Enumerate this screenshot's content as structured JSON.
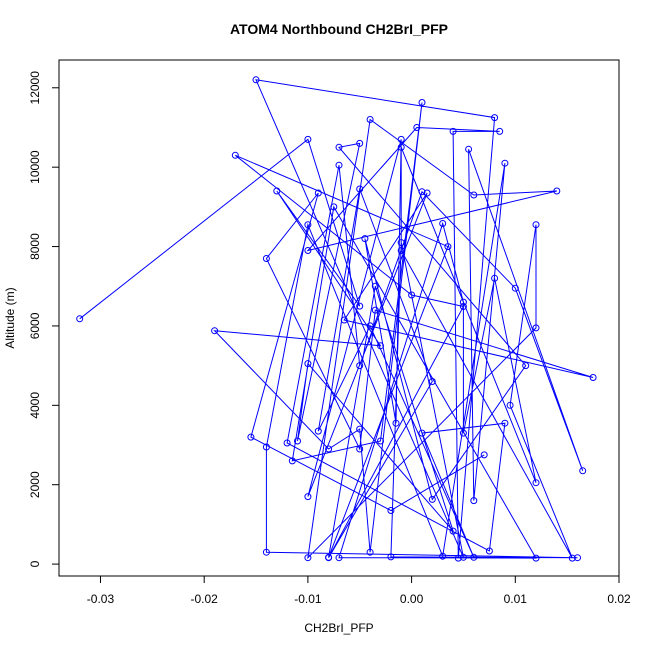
{
  "chart_data": {
    "type": "line",
    "title": "ATOM4 Northbound CH2BrI_PFP",
    "xlabel": "CH2BrI_PFP",
    "ylabel": "Altitude (m)",
    "xlim": [
      -0.034,
      0.02
    ],
    "ylim": [
      -300,
      12700
    ],
    "x_ticks": [
      -0.03,
      -0.02,
      -0.01,
      0.0,
      0.01,
      0.02
    ],
    "x_tick_labels": [
      "-0.03",
      "-0.02",
      "-0.01",
      "0.00",
      "0.01",
      "0.02"
    ],
    "y_ticks": [
      0,
      2000,
      4000,
      6000,
      8000,
      10000,
      12000
    ],
    "y_tick_labels": [
      "0",
      "2000",
      "4000",
      "6000",
      "8000",
      "10000",
      "12000"
    ],
    "grid": false,
    "series": [
      {
        "color": "#0000ff",
        "marker": "open-circle",
        "points": [
          [
            -0.032,
            6180
          ],
          [
            -0.01,
            10700
          ],
          [
            -0.005,
            6500
          ],
          [
            -0.013,
            9400
          ],
          [
            -0.003,
            5500
          ],
          [
            -0.019,
            5880
          ],
          [
            -0.008,
            2900
          ],
          [
            -0.005,
            3400
          ],
          [
            -0.004,
            300
          ],
          [
            0.001,
            11630
          ],
          [
            -0.003,
            3100
          ],
          [
            -0.0115,
            2600
          ],
          [
            -0.0075,
            9000
          ],
          [
            0.012,
            150
          ],
          [
            -0.007,
            160
          ],
          [
            0.003,
            8580
          ],
          [
            0.005,
            6600
          ],
          [
            0.005,
            3300
          ],
          [
            0.008,
            7200
          ],
          [
            0.012,
            2050
          ],
          [
            -0.001,
            10500
          ],
          [
            -0.001,
            7900
          ],
          [
            0.0155,
            150
          ],
          [
            0.0095,
            4000
          ],
          [
            0.012,
            8550
          ],
          [
            0.012,
            5950
          ],
          [
            -0.01,
            160
          ],
          [
            -0.004,
            11200
          ],
          [
            0.006,
            9300
          ],
          [
            0.014,
            9400
          ],
          [
            -0.01,
            7900
          ],
          [
            0.0005,
            11000
          ],
          [
            0.0085,
            10900
          ],
          [
            0.004,
            10900
          ],
          [
            0.0045,
            150
          ],
          [
            0.008,
            11250
          ],
          [
            -0.015,
            12200
          ],
          [
            0.005,
            170
          ],
          [
            -0.001,
            8100
          ],
          [
            -0.002,
            180
          ],
          [
            0.016,
            160
          ],
          [
            -0.014,
            300
          ],
          [
            -0.014,
            2950
          ],
          [
            -0.01,
            8550
          ],
          [
            0.003,
            200
          ],
          [
            0.009,
            10100
          ],
          [
            0.006,
            1600
          ],
          [
            0.0055,
            10450
          ],
          [
            0.0165,
            2350
          ],
          [
            0.01,
            6950
          ],
          [
            0.001,
            9380
          ],
          [
            -0.005,
            5000
          ],
          [
            -0.007,
            10050
          ],
          [
            -0.012,
            3050
          ],
          [
            0.0075,
            330
          ],
          [
            0.009,
            3550
          ],
          [
            0.001,
            3300
          ],
          [
            0.006,
            170
          ],
          [
            -0.004,
            6000
          ],
          [
            -0.009,
            3350
          ],
          [
            -0.005,
            9450
          ],
          [
            0.002,
            4600
          ],
          [
            -0.008,
            160
          ],
          [
            0.005,
            6490
          ],
          [
            0.0,
            6780
          ],
          [
            -0.017,
            10300
          ],
          [
            0.0035,
            8000
          ],
          [
            -0.008,
            170
          ],
          [
            -0.0035,
            7000
          ],
          [
            0.004,
            830
          ],
          [
            -0.01,
            5050
          ],
          [
            -0.011,
            3100
          ],
          [
            -0.005,
            10600
          ],
          [
            -0.007,
            10500
          ],
          [
            0.011,
            5000
          ],
          [
            0.002,
            1630
          ],
          [
            -0.0045,
            8200
          ],
          [
            -0.0015,
            3550
          ],
          [
            -0.001,
            10700
          ],
          [
            -0.01,
            1700
          ],
          [
            0.0015,
            9350
          ],
          [
            -0.0065,
            6150
          ],
          [
            0.0175,
            4700
          ],
          [
            -0.0035,
            6400
          ],
          [
            -0.005,
            2900
          ],
          [
            -0.014,
            7700
          ],
          [
            -0.009,
            9350
          ],
          [
            -0.0155,
            3200
          ],
          [
            -0.002,
            1350
          ],
          [
            0.007,
            2750
          ]
        ]
      }
    ]
  }
}
